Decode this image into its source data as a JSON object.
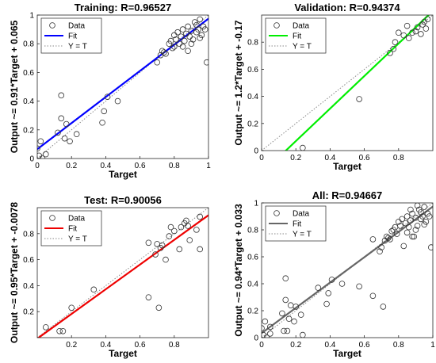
{
  "chart_data": [
    {
      "type": "scatter",
      "title": "Training: R=0.96527",
      "xlabel": "Target",
      "ylabel": "Output ~= 0.91*Target + 0.065",
      "xlim": [
        0,
        1
      ],
      "ylim": [
        0,
        1
      ],
      "xticks": [
        "0",
        "0.2",
        "0.4",
        "0.6",
        "0.8",
        "1"
      ],
      "yticks": [
        "0",
        "0.2",
        "0.4",
        "0.6",
        "0.8",
        "1"
      ],
      "grid": false,
      "legend": {
        "position": "top-left",
        "entries": [
          "Data",
          "Fit",
          "Y = T"
        ]
      },
      "fit": {
        "slope": 0.91,
        "intercept": 0.065,
        "color": "#0000ff"
      },
      "identity_color": "#888888",
      "series": [
        {
          "name": "Data",
          "points": [
            [
              0.0,
              0.07
            ],
            [
              0.01,
              0.02
            ],
            [
              0.02,
              0.12
            ],
            [
              0.03,
              0.0
            ],
            [
              0.05,
              0.03
            ],
            [
              0.12,
              0.18
            ],
            [
              0.14,
              0.28
            ],
            [
              0.14,
              0.44
            ],
            [
              0.16,
              0.14
            ],
            [
              0.17,
              0.24
            ],
            [
              0.19,
              0.12
            ],
            [
              0.23,
              0.17
            ],
            [
              0.38,
              0.25
            ],
            [
              0.39,
              0.33
            ],
            [
              0.41,
              0.43
            ],
            [
              0.47,
              0.4
            ],
            [
              0.7,
              0.67
            ],
            [
              0.72,
              0.72
            ],
            [
              0.73,
              0.75
            ],
            [
              0.74,
              0.74
            ],
            [
              0.75,
              0.73
            ],
            [
              0.77,
              0.8
            ],
            [
              0.78,
              0.82
            ],
            [
              0.79,
              0.77
            ],
            [
              0.8,
              0.86
            ],
            [
              0.81,
              0.83
            ],
            [
              0.82,
              0.88
            ],
            [
              0.83,
              0.8
            ],
            [
              0.84,
              0.85
            ],
            [
              0.85,
              0.9
            ],
            [
              0.86,
              0.82
            ],
            [
              0.87,
              0.87
            ],
            [
              0.88,
              0.92
            ],
            [
              0.89,
              0.85
            ],
            [
              0.9,
              0.89
            ],
            [
              0.91,
              0.83
            ],
            [
              0.92,
              0.95
            ],
            [
              0.93,
              0.88
            ],
            [
              0.94,
              0.9
            ],
            [
              0.95,
              0.97
            ],
            [
              0.96,
              0.86
            ],
            [
              0.97,
              0.92
            ],
            [
              0.98,
              0.9
            ],
            [
              0.99,
              0.67
            ],
            [
              0.85,
              0.78
            ],
            [
              0.88,
              0.75
            ],
            [
              0.9,
              0.8
            ],
            [
              0.8,
              0.78
            ],
            [
              0.93,
              0.93
            ],
            [
              0.95,
              0.84
            ]
          ]
        }
      ]
    },
    {
      "type": "scatter",
      "title": "Validation: R=0.94374",
      "xlabel": "Target",
      "ylabel": "Output ~= 1.2*Target + -0.17",
      "xlim": [
        0,
        1
      ],
      "ylim": [
        0,
        1
      ],
      "xticks": [
        "0",
        "0.2",
        "0.4",
        "0.6",
        "0.8"
      ],
      "yticks": [
        "0",
        "0.2",
        "0.4",
        "0.6",
        "0.8"
      ],
      "grid": false,
      "legend": {
        "position": "top-left",
        "entries": [
          "Data",
          "Fit",
          "Y = T"
        ]
      },
      "fit": {
        "slope": 1.2,
        "intercept": -0.17,
        "color": "#00ee00"
      },
      "identity_color": "#888888",
      "series": [
        {
          "name": "Data",
          "points": [
            [
              0.24,
              0.02
            ],
            [
              0.57,
              0.38
            ],
            [
              0.75,
              0.72
            ],
            [
              0.77,
              0.75
            ],
            [
              0.78,
              0.8
            ],
            [
              0.83,
              0.85
            ],
            [
              0.86,
              0.83
            ],
            [
              0.88,
              0.87
            ],
            [
              0.9,
              0.88
            ],
            [
              0.91,
              0.91
            ],
            [
              0.93,
              0.86
            ],
            [
              0.94,
              0.93
            ],
            [
              0.95,
              0.95
            ],
            [
              0.96,
              0.9
            ],
            [
              0.97,
              0.97
            ],
            [
              0.85,
              0.92
            ],
            [
              0.8,
              0.87
            ]
          ]
        }
      ]
    },
    {
      "type": "scatter",
      "title": "Test: R=0.90056",
      "xlabel": "Target",
      "ylabel": "Output ~= 0.95*Target + -0.0078",
      "xlim": [
        0,
        1
      ],
      "ylim": [
        0,
        1
      ],
      "xticks": [
        "0.2",
        "0.4",
        "0.6",
        "0.8"
      ],
      "yticks": [
        "0.2",
        "0.4",
        "0.6",
        "0.8"
      ],
      "grid": false,
      "legend": {
        "position": "top-left",
        "entries": [
          "Data",
          "Fit",
          "Y = T"
        ]
      },
      "fit": {
        "slope": 0.95,
        "intercept": -0.0078,
        "color": "#ee0000"
      },
      "identity_color": "#888888",
      "series": [
        {
          "name": "Data",
          "points": [
            [
              0.05,
              0.08
            ],
            [
              0.13,
              0.05
            ],
            [
              0.15,
              0.05
            ],
            [
              0.2,
              0.23
            ],
            [
              0.33,
              0.37
            ],
            [
              0.65,
              0.31
            ],
            [
              0.65,
              0.73
            ],
            [
              0.69,
              0.64
            ],
            [
              0.7,
              0.72
            ],
            [
              0.71,
              0.23
            ],
            [
              0.72,
              0.69
            ],
            [
              0.73,
              0.71
            ],
            [
              0.75,
              0.6
            ],
            [
              0.77,
              0.78
            ],
            [
              0.78,
              0.85
            ],
            [
              0.8,
              0.82
            ],
            [
              0.83,
              0.68
            ],
            [
              0.84,
              0.85
            ],
            [
              0.86,
              0.88
            ],
            [
              0.87,
              0.9
            ],
            [
              0.88,
              0.86
            ],
            [
              0.89,
              0.75
            ],
            [
              0.93,
              0.83
            ],
            [
              0.95,
              0.93
            ],
            [
              0.95,
              0.68
            ]
          ]
        }
      ]
    },
    {
      "type": "scatter",
      "title": "All: R=0.94667",
      "xlabel": "Target",
      "ylabel": "Output ~= 0.94*Target + 0.033",
      "xlim": [
        0,
        1
      ],
      "ylim": [
        0,
        1
      ],
      "xticks": [
        "0",
        "0.2",
        "0.4",
        "0.6",
        "0.8",
        "1"
      ],
      "yticks": [
        "0",
        "0.2",
        "0.4",
        "0.6",
        "0.8",
        "1"
      ],
      "grid": false,
      "legend": {
        "position": "top-left",
        "entries": [
          "Data",
          "Fit",
          "Y = T"
        ]
      },
      "fit": {
        "slope": 0.94,
        "intercept": 0.033,
        "color": "#666666"
      },
      "identity_color": "#888888",
      "series": [
        {
          "name": "Data",
          "points": [
            [
              0.0,
              0.07
            ],
            [
              0.01,
              0.02
            ],
            [
              0.02,
              0.12
            ],
            [
              0.03,
              0.0
            ],
            [
              0.05,
              0.03
            ],
            [
              0.05,
              0.08
            ],
            [
              0.12,
              0.18
            ],
            [
              0.13,
              0.05
            ],
            [
              0.14,
              0.28
            ],
            [
              0.14,
              0.44
            ],
            [
              0.15,
              0.05
            ],
            [
              0.16,
              0.14
            ],
            [
              0.17,
              0.24
            ],
            [
              0.19,
              0.12
            ],
            [
              0.2,
              0.23
            ],
            [
              0.23,
              0.17
            ],
            [
              0.24,
              0.02
            ],
            [
              0.33,
              0.37
            ],
            [
              0.38,
              0.25
            ],
            [
              0.39,
              0.33
            ],
            [
              0.41,
              0.43
            ],
            [
              0.47,
              0.4
            ],
            [
              0.57,
              0.38
            ],
            [
              0.65,
              0.31
            ],
            [
              0.65,
              0.73
            ],
            [
              0.69,
              0.64
            ],
            [
              0.7,
              0.67
            ],
            [
              0.71,
              0.23
            ],
            [
              0.72,
              0.72
            ],
            [
              0.73,
              0.75
            ],
            [
              0.74,
              0.74
            ],
            [
              0.75,
              0.73
            ],
            [
              0.76,
              0.79
            ],
            [
              0.77,
              0.8
            ],
            [
              0.78,
              0.82
            ],
            [
              0.79,
              0.77
            ],
            [
              0.8,
              0.86
            ],
            [
              0.81,
              0.83
            ],
            [
              0.82,
              0.88
            ],
            [
              0.83,
              0.68
            ],
            [
              0.84,
              0.85
            ],
            [
              0.85,
              0.9
            ],
            [
              0.86,
              0.82
            ],
            [
              0.87,
              0.87
            ],
            [
              0.88,
              0.92
            ],
            [
              0.89,
              0.75
            ],
            [
              0.9,
              0.89
            ],
            [
              0.91,
              0.83
            ],
            [
              0.92,
              0.95
            ],
            [
              0.93,
              0.88
            ],
            [
              0.94,
              0.9
            ],
            [
              0.95,
              0.97
            ],
            [
              0.96,
              0.86
            ],
            [
              0.97,
              0.92
            ],
            [
              0.98,
              0.9
            ],
            [
              0.99,
              0.67
            ],
            [
              0.85,
              0.78
            ],
            [
              0.88,
              0.75
            ],
            [
              0.9,
              0.8
            ],
            [
              0.93,
              0.93
            ],
            [
              0.95,
              0.84
            ],
            [
              0.87,
              0.95
            ],
            [
              0.91,
              0.98
            ]
          ]
        }
      ]
    }
  ]
}
